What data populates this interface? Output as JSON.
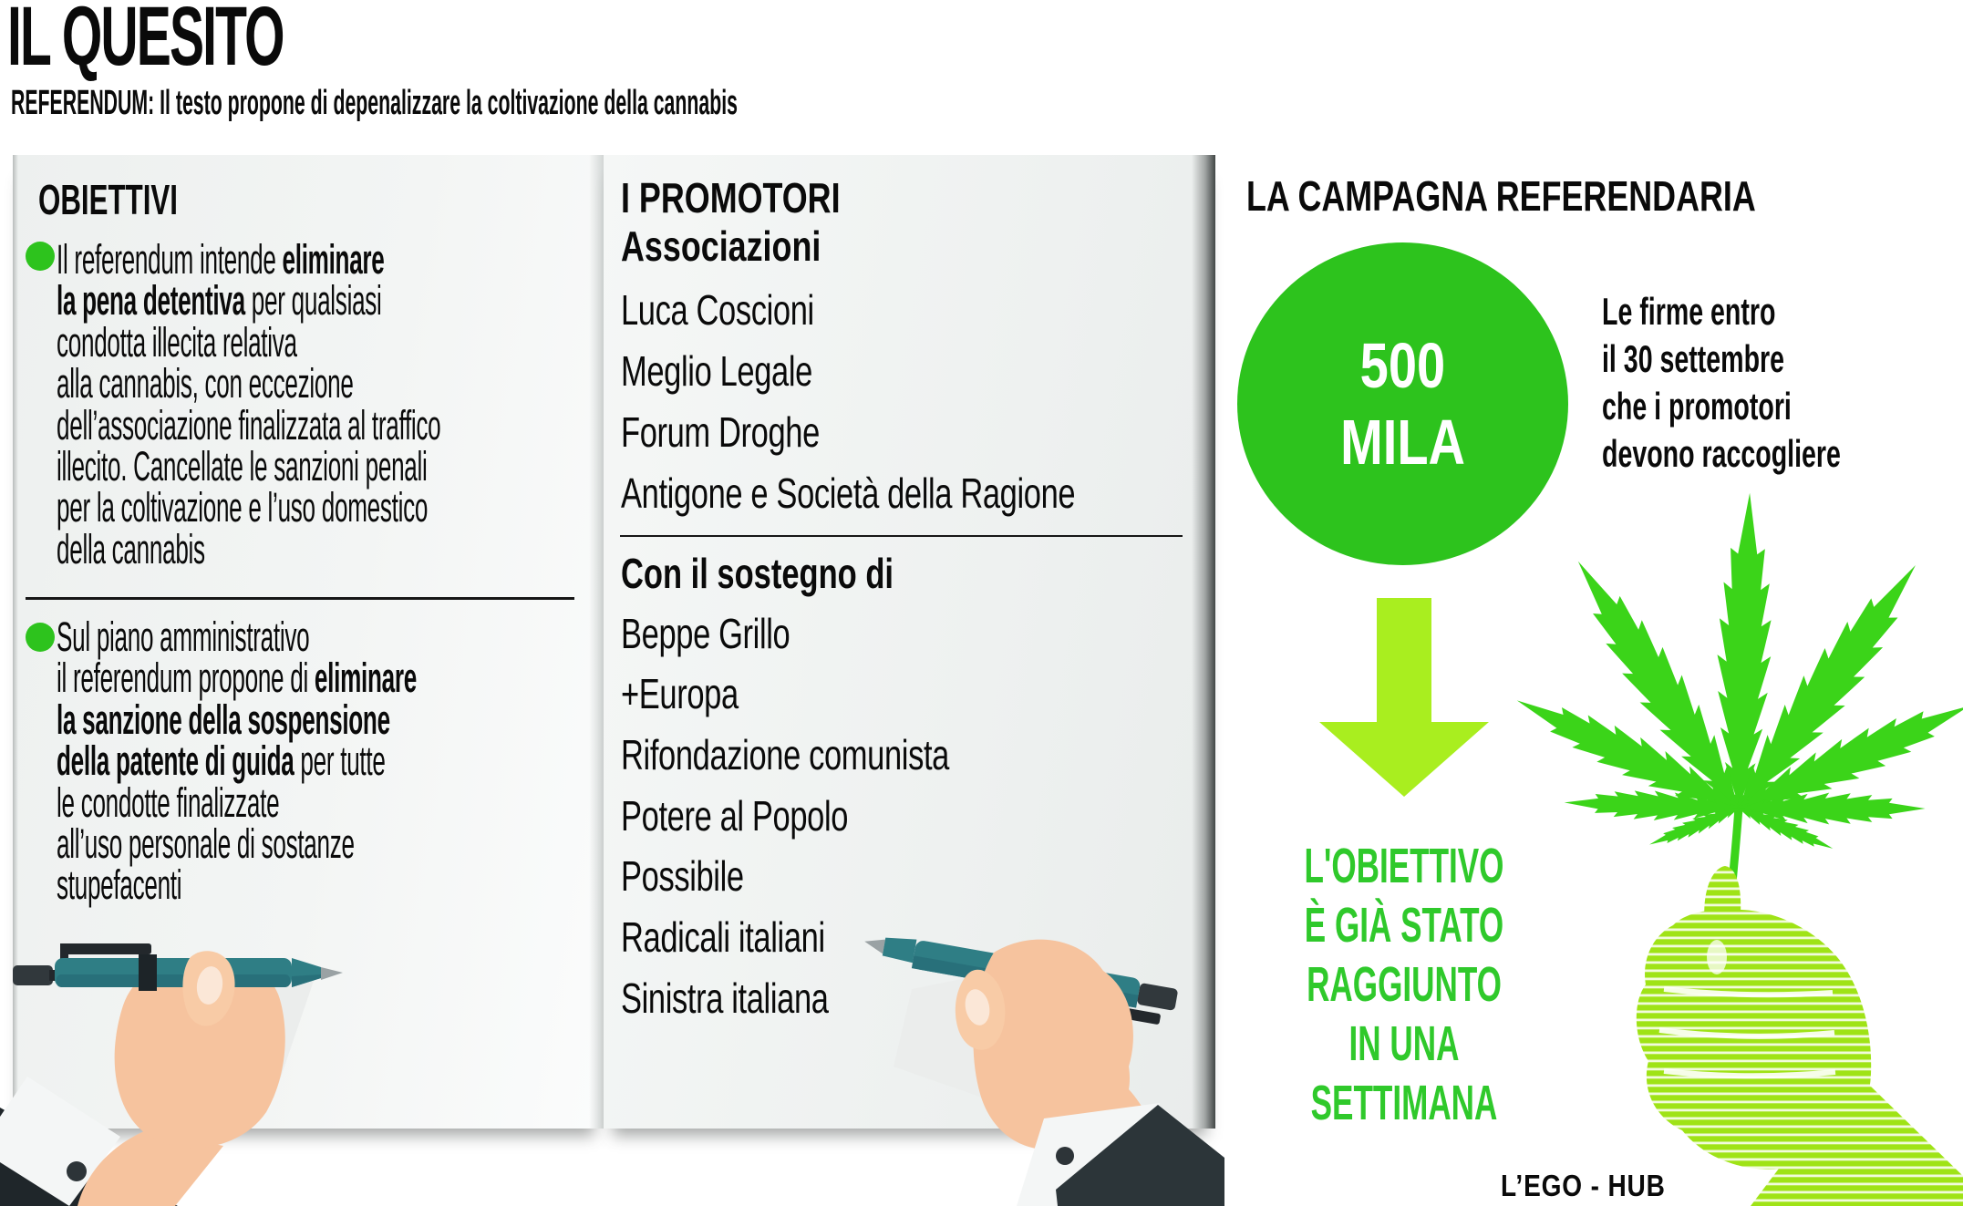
{
  "header": {
    "title": "IL QUESITO",
    "subtitle": "REFERENDUM: Il testo propone di depenalizzare la coltivazione della cannabis"
  },
  "obiettivi": {
    "heading": "OBIETTIVI",
    "bullets": [
      {
        "segments": [
          {
            "text": "Il referendum intende ",
            "bold": false
          },
          {
            "text": "eliminare\nla pena detentiva",
            "bold": true
          },
          {
            "text": " per qualsiasi\ncondotta illecita relativa\nalla cannabis, con eccezione\ndell’associazione finalizzata al traffico\nillecito. Cancellate le sanzioni penali\nper la coltivazione e l’uso domestico\ndella cannabis",
            "bold": false
          }
        ]
      },
      {
        "segments": [
          {
            "text": "Sul piano amministrativo\nil referendum propone di ",
            "bold": false
          },
          {
            "text": "eliminare\nla sanzione della sospensione\ndella patente di guida",
            "bold": true
          },
          {
            "text": " per tutte\nle condotte finalizzate\nall’uso personale di sostanze\nstupefacenti",
            "bold": false
          }
        ]
      }
    ]
  },
  "promotori": {
    "heading": "I PROMOTORI",
    "subheading": "Associazioni",
    "associations": [
      "Luca Coscioni",
      "Meglio Legale",
      "Forum Droghe",
      "Antigone e Società della Ragione"
    ],
    "support_heading": "Con il sostegno di",
    "supporters": [
      "Beppe Grillo",
      "+Europa",
      "Rifondazione comunista",
      "Potere al Popolo",
      "Possibile",
      "Radicali italiani",
      "Sinistra italiana"
    ]
  },
  "campagna": {
    "heading": "LA CAMPAGNA REFERENDARIA",
    "signatures": {
      "value": "500",
      "unit": "MILA"
    },
    "note": "Le firme entro\nil 30 settembre\nche i promotori\ndevono raccogliere",
    "result": "L'OBIETTIVO\nÈ GIÀ STATO RAGGIUNTO\nIN UNA SETTIMANA"
  },
  "credit": "L’EGO - HUB",
  "colors": {
    "accent_green": "#2dc31d",
    "arrow_green": "#a9ee1f",
    "result_green": "#2fc92b",
    "leaf_green": "#3bd419",
    "fist_green": "#9fe316",
    "pen_teal": "#2f7e85",
    "skin": "#f6c39e"
  }
}
